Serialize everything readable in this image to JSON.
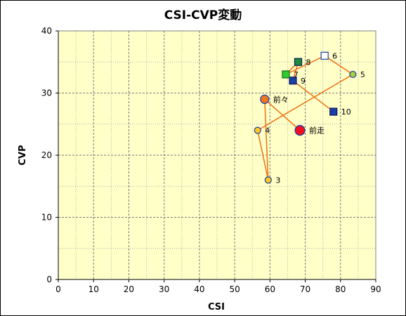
{
  "chart_data": {
    "type": "scatter",
    "title": "CSI-CVP変動",
    "xlabel": "CSI",
    "ylabel": "CVP",
    "xlim": [
      0,
      90
    ],
    "ylim": [
      0,
      40
    ],
    "xticks": [
      0,
      10,
      20,
      30,
      40,
      50,
      60,
      70,
      80,
      90
    ],
    "yticks": [
      0,
      10,
      20,
      30,
      40
    ],
    "grid": true,
    "line_color": "#f07820",
    "plot_background": "#ffffc8",
    "points": [
      {
        "label": "10",
        "x": 78,
        "y": 27,
        "marker": "square",
        "fill": "#1a3fa6",
        "stroke": "#0a1a60",
        "size": 10
      },
      {
        "label": "9",
        "x": 66.5,
        "y": 32,
        "marker": "square",
        "fill": "#1a3fa6",
        "stroke": "#0a1a60",
        "size": 10
      },
      {
        "label": "8",
        "x": 68,
        "y": 35,
        "marker": "square",
        "fill": "#1e8a3a",
        "stroke": "#0a1a60",
        "size": 10
      },
      {
        "label": "7",
        "x": 64.5,
        "y": 33,
        "marker": "square",
        "fill": "#2ecc2e",
        "stroke": "#1a6a1a",
        "size": 10
      },
      {
        "label": "6",
        "x": 75.5,
        "y": 36,
        "marker": "square",
        "fill": "#ffffff",
        "stroke": "#1a3fa6",
        "size": 10
      },
      {
        "label": "5",
        "x": 83.5,
        "y": 33,
        "marker": "circle",
        "fill": "#a8d040",
        "stroke": "#1a3fa6",
        "size": 9
      },
      {
        "label": "4",
        "x": 56.5,
        "y": 24,
        "marker": "circle",
        "fill": "#ffc820",
        "stroke": "#1a3fa6",
        "size": 9
      },
      {
        "label": "3",
        "x": 59.5,
        "y": 16,
        "marker": "circle",
        "fill": "#ffc820",
        "stroke": "#1a3fa6",
        "size": 9
      },
      {
        "label": "前々",
        "x": 58.5,
        "y": 29,
        "marker": "circle",
        "fill": "#f07820",
        "stroke": "#1a3fa6",
        "size": 12
      },
      {
        "label": "前走",
        "x": 68.5,
        "y": 24,
        "marker": "circle",
        "fill": "#ee1020",
        "stroke": "#1a3fa6",
        "size": 14
      }
    ]
  }
}
